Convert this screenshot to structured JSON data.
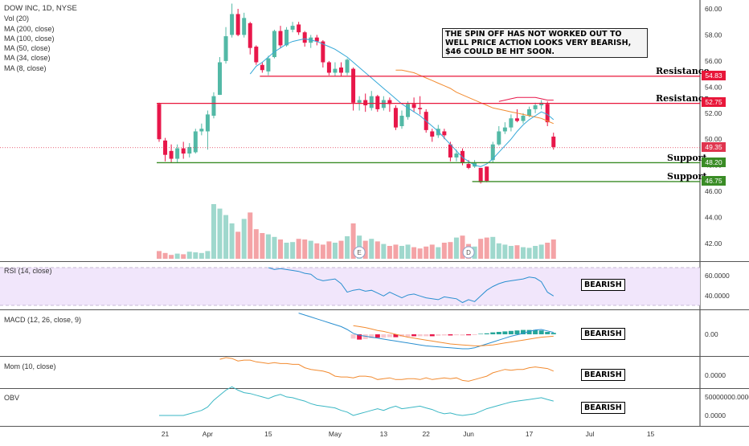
{
  "header": {
    "symbol_line": "DOW INC, 1D, NYSE",
    "indicators": [
      "Vol (20)",
      "MA (200, close)",
      "MA (100, close)",
      "MA (50, close)",
      "MA (34, close)",
      "MA (8, close)"
    ]
  },
  "note": "THE SPIN OFF HAS NOT WORKED OUT TO WELL PRICE ACTION LOOKS VERY BEARISH, $46 COULD BE HIT SOON.",
  "levels": [
    {
      "label": "Resistance",
      "price": 54.83,
      "tag": "54.83",
      "color": "#e8173a"
    },
    {
      "label": "Resistance",
      "price": 52.75,
      "tag": "52.75",
      "color": "#e8173a"
    },
    {
      "label": "Support",
      "price": 48.2,
      "tag": "48.20",
      "color": "#3a8c26"
    },
    {
      "label": "Support",
      "price": 46.75,
      "tag": "46.75",
      "color": "#3a8c26"
    }
  ],
  "last_price": {
    "price": 49.35,
    "tag": "49.35",
    "color": "#e0354f"
  },
  "panes": {
    "rsi": {
      "title": "RSI (14, close)",
      "axis": [
        "60.0000",
        "40.0000"
      ],
      "badge": "BEARISH"
    },
    "macd": {
      "title": "MACD (12, 26, close, 9)",
      "axis": [
        "0.00"
      ],
      "badge": "BEARISH"
    },
    "mom": {
      "title": "Mom (10, close)",
      "axis": [
        "0.0000"
      ],
      "badge": "BEARISH"
    },
    "obv": {
      "title": "OBV",
      "axis": [
        "50000000.0000",
        "0.0000"
      ],
      "badge": "BEARISH"
    }
  },
  "events": [
    "E",
    "D"
  ],
  "colors": {
    "up": "#53b9a6",
    "down": "#e8174a",
    "up_vol": "#9fd8cd",
    "down_vol": "#f4a3a6",
    "ma_fast": "#35a8d8",
    "ma_slow": "#f28b30",
    "ma_third": "#e8174a",
    "rsi": "#2a8fd0",
    "rsi_bg": "#f1e6fb"
  },
  "chart_data": {
    "type": "candlestick",
    "price_axis": {
      "ticks": [
        "60.00",
        "58.00",
        "56.00",
        "54.00",
        "52.00",
        "50.00",
        "48.00",
        "46.00",
        "44.00",
        "42.00"
      ],
      "range": [
        40.8,
        60.6
      ]
    },
    "x_axis": {
      "ticks": [
        "21",
        "Apr",
        "15",
        "May",
        "13",
        "22",
        "Jun",
        "17",
        "Jul",
        "15"
      ],
      "tick_dates": [
        "2019-03-21",
        "2019-04-01",
        "2019-04-15",
        "2019-05-01",
        "2019-05-13",
        "2019-05-22",
        "2019-06-03",
        "2019-06-17",
        "2019-07-01",
        "2019-07-15"
      ]
    },
    "candles": [
      {
        "date": "2019-03-20",
        "o": 52.7,
        "h": 52.8,
        "c": 50.0,
        "l": 49.8
      },
      {
        "date": "2019-03-21",
        "o": 49.9,
        "h": 50.1,
        "c": 48.8,
        "l": 48.3
      },
      {
        "date": "2019-03-22",
        "o": 49.1,
        "h": 49.6,
        "c": 48.5,
        "l": 48.2
      },
      {
        "date": "2019-03-25",
        "o": 48.5,
        "h": 49.6,
        "c": 49.3,
        "l": 48.2
      },
      {
        "date": "2019-03-26",
        "o": 49.3,
        "h": 49.8,
        "c": 48.9,
        "l": 48.5
      },
      {
        "date": "2019-03-27",
        "o": 48.9,
        "h": 49.7,
        "c": 49.4,
        "l": 48.6
      },
      {
        "date": "2019-03-28",
        "o": 49.0,
        "h": 50.8,
        "c": 50.6,
        "l": 48.9
      },
      {
        "date": "2019-03-29",
        "o": 50.6,
        "h": 51.2,
        "c": 50.8,
        "l": 50.3
      },
      {
        "date": "2019-04-01",
        "o": 50.6,
        "h": 52.2,
        "c": 51.9,
        "l": 49.2
      },
      {
        "date": "2019-04-02",
        "o": 51.8,
        "h": 53.6,
        "c": 53.3,
        "l": 51.6
      },
      {
        "date": "2019-04-03",
        "o": 53.4,
        "h": 56.3,
        "c": 55.9,
        "l": 53.4
      },
      {
        "date": "2019-04-04",
        "o": 56.0,
        "h": 58.6,
        "c": 57.9,
        "l": 55.8
      },
      {
        "date": "2019-04-05",
        "o": 58.0,
        "h": 60.4,
        "c": 59.6,
        "l": 57.8
      },
      {
        "date": "2019-04-08",
        "o": 59.6,
        "h": 60.0,
        "c": 58.0,
        "l": 57.9
      },
      {
        "date": "2019-04-09",
        "o": 58.0,
        "h": 59.7,
        "c": 59.3,
        "l": 57.8
      },
      {
        "date": "2019-04-10",
        "o": 58.9,
        "h": 59.0,
        "c": 57.0,
        "l": 56.5
      },
      {
        "date": "2019-04-11",
        "o": 57.1,
        "h": 57.2,
        "c": 55.9,
        "l": 55.7
      },
      {
        "date": "2019-04-12",
        "o": 55.7,
        "h": 55.9,
        "c": 55.3,
        "l": 55.1
      },
      {
        "date": "2019-04-15",
        "o": 55.2,
        "h": 56.4,
        "c": 56.2,
        "l": 54.9
      },
      {
        "date": "2019-04-16",
        "o": 56.3,
        "h": 58.4,
        "c": 58.3,
        "l": 56.2
      },
      {
        "date": "2019-04-17",
        "o": 58.3,
        "h": 58.7,
        "c": 57.2,
        "l": 57.0
      },
      {
        "date": "2019-04-18",
        "o": 57.2,
        "h": 58.6,
        "c": 58.4,
        "l": 57.1
      },
      {
        "date": "2019-04-22",
        "o": 58.4,
        "h": 59.0,
        "c": 58.7,
        "l": 58.2
      },
      {
        "date": "2019-04-23",
        "o": 58.8,
        "h": 59.0,
        "c": 58.2,
        "l": 58.0
      },
      {
        "date": "2019-04-24",
        "o": 58.2,
        "h": 58.3,
        "c": 57.4,
        "l": 57.1
      },
      {
        "date": "2019-04-25",
        "o": 57.4,
        "h": 58.0,
        "c": 57.8,
        "l": 57.0
      },
      {
        "date": "2019-04-26",
        "o": 57.8,
        "h": 58.0,
        "c": 57.5,
        "l": 57.2
      },
      {
        "date": "2019-04-29",
        "o": 57.5,
        "h": 57.6,
        "c": 55.9,
        "l": 55.5
      },
      {
        "date": "2019-04-30",
        "o": 55.9,
        "h": 56.0,
        "c": 55.1,
        "l": 54.9
      },
      {
        "date": "2019-05-01",
        "o": 55.1,
        "h": 55.9,
        "c": 55.4,
        "l": 54.8
      },
      {
        "date": "2019-05-02",
        "o": 55.5,
        "h": 55.9,
        "c": 55.1,
        "l": 54.8
      },
      {
        "date": "2019-05-03",
        "o": 55.1,
        "h": 56.2,
        "c": 56.1,
        "l": 54.9
      },
      {
        "date": "2019-05-06",
        "o": 55.4,
        "h": 55.5,
        "c": 52.8,
        "l": 52.2
      },
      {
        "date": "2019-05-07",
        "o": 52.8,
        "h": 53.3,
        "c": 53.0,
        "l": 52.2
      },
      {
        "date": "2019-05-08",
        "o": 53.0,
        "h": 53.5,
        "c": 52.6,
        "l": 52.1
      },
      {
        "date": "2019-05-09",
        "o": 52.4,
        "h": 53.7,
        "c": 53.3,
        "l": 52.2
      },
      {
        "date": "2019-05-10",
        "o": 53.3,
        "h": 53.4,
        "c": 52.3,
        "l": 52.1
      },
      {
        "date": "2019-05-13",
        "o": 52.4,
        "h": 53.3,
        "c": 53.0,
        "l": 52.2
      },
      {
        "date": "2019-05-14",
        "o": 53.0,
        "h": 53.2,
        "c": 52.7,
        "l": 52.1
      },
      {
        "date": "2019-05-15",
        "o": 52.4,
        "h": 52.6,
        "c": 50.9,
        "l": 50.7
      },
      {
        "date": "2019-05-16",
        "o": 51.0,
        "h": 52.2,
        "c": 51.8,
        "l": 50.8
      },
      {
        "date": "2019-05-17",
        "o": 51.7,
        "h": 52.9,
        "c": 52.7,
        "l": 51.5
      },
      {
        "date": "2019-05-20",
        "o": 52.7,
        "h": 53.2,
        "c": 52.4,
        "l": 52.1
      },
      {
        "date": "2019-05-21",
        "o": 52.4,
        "h": 53.3,
        "c": 52.3,
        "l": 51.9
      },
      {
        "date": "2019-05-22",
        "o": 52.1,
        "h": 52.3,
        "c": 50.7,
        "l": 50.5
      },
      {
        "date": "2019-05-23",
        "o": 50.6,
        "h": 50.8,
        "c": 50.2,
        "l": 49.8
      },
      {
        "date": "2019-05-24",
        "o": 50.3,
        "h": 51.1,
        "c": 50.8,
        "l": 50.1
      },
      {
        "date": "2019-05-28",
        "o": 50.6,
        "h": 50.8,
        "c": 50.3,
        "l": 50.0
      },
      {
        "date": "2019-05-29",
        "o": 49.6,
        "h": 49.8,
        "c": 48.6,
        "l": 48.3
      },
      {
        "date": "2019-05-30",
        "o": 48.6,
        "h": 49.2,
        "c": 48.9,
        "l": 48.3
      },
      {
        "date": "2019-05-31",
        "o": 49.1,
        "h": 49.3,
        "c": 48.2,
        "l": 48.0
      },
      {
        "date": "2019-06-03",
        "o": 48.1,
        "h": 48.4,
        "c": 47.8,
        "l": 47.7
      },
      {
        "date": "2019-06-04",
        "o": 47.9,
        "h": 48.4,
        "c": 48.2,
        "l": 47.8
      },
      {
        "date": "2019-06-05",
        "o": 47.8,
        "h": 47.8,
        "c": 46.7,
        "l": 46.6
      },
      {
        "date": "2019-06-06",
        "o": 47.9,
        "h": 47.9,
        "c": 46.8,
        "l": 46.7
      },
      {
        "date": "2019-06-07",
        "o": 48.4,
        "h": 49.8,
        "c": 49.6,
        "l": 48.2
      },
      {
        "date": "2019-06-10",
        "o": 49.6,
        "h": 51.0,
        "c": 50.6,
        "l": 49.5
      },
      {
        "date": "2019-06-11",
        "o": 50.6,
        "h": 51.3,
        "c": 50.9,
        "l": 50.4
      },
      {
        "date": "2019-06-12",
        "o": 50.9,
        "h": 51.9,
        "c": 51.6,
        "l": 50.6
      },
      {
        "date": "2019-06-13",
        "o": 51.6,
        "h": 52.3,
        "c": 51.4,
        "l": 51.3
      },
      {
        "date": "2019-06-14",
        "o": 51.4,
        "h": 52.0,
        "c": 51.8,
        "l": 51.2
      },
      {
        "date": "2019-06-17",
        "o": 51.8,
        "h": 52.5,
        "c": 52.3,
        "l": 51.7
      },
      {
        "date": "2019-06-18",
        "o": 52.3,
        "h": 52.8,
        "c": 52.6,
        "l": 52.0
      },
      {
        "date": "2019-06-19",
        "o": 52.6,
        "h": 53.0,
        "c": 52.8,
        "l": 52.3
      },
      {
        "date": "2019-06-20",
        "o": 52.7,
        "h": 52.9,
        "c": 51.3,
        "l": 51.0
      },
      {
        "date": "2019-06-21",
        "o": 50.2,
        "h": 50.5,
        "c": 49.4,
        "l": 49.2
      }
    ],
    "volume_relative": [
      0.12,
      0.09,
      0.06,
      0.08,
      0.07,
      0.11,
      0.1,
      0.09,
      0.12,
      0.85,
      0.78,
      0.68,
      0.55,
      0.42,
      0.62,
      0.72,
      0.46,
      0.4,
      0.38,
      0.34,
      0.3,
      0.25,
      0.26,
      0.31,
      0.3,
      0.28,
      0.24,
      0.22,
      0.27,
      0.25,
      0.28,
      0.35,
      0.55,
      0.36,
      0.28,
      0.31,
      0.27,
      0.23,
      0.2,
      0.22,
      0.2,
      0.22,
      0.18,
      0.16,
      0.19,
      0.22,
      0.18,
      0.25,
      0.26,
      0.33,
      0.36,
      0.23,
      0.19,
      0.31,
      0.33,
      0.34,
      0.24,
      0.22,
      0.2,
      0.21,
      0.18,
      0.17,
      0.2,
      0.22,
      0.25,
      0.3
    ],
    "ma_fast": [
      null,
      null,
      null,
      null,
      null,
      null,
      null,
      null,
      null,
      null,
      null,
      null,
      null,
      null,
      null,
      55.0,
      55.6,
      55.9,
      56.3,
      56.7,
      57.0,
      57.3,
      57.5,
      57.6,
      57.7,
      57.6,
      57.5,
      57.3,
      57.1,
      56.9,
      56.6,
      56.3,
      55.9,
      55.5,
      55.1,
      54.7,
      54.3,
      53.9,
      53.5,
      53.1,
      52.7,
      52.4,
      52.1,
      51.8,
      51.4,
      51.0,
      50.6,
      50.1,
      49.6,
      49.1,
      48.6,
      48.3,
      48.0,
      47.9,
      48.1,
      48.5,
      49.0,
      49.5,
      50.0,
      50.6,
      51.1,
      51.5,
      51.8,
      52.1,
      51.9,
      51.5
    ],
    "ma_slow": [
      null,
      null,
      null,
      null,
      null,
      null,
      null,
      null,
      null,
      null,
      null,
      null,
      null,
      null,
      null,
      null,
      null,
      null,
      null,
      null,
      null,
      null,
      null,
      null,
      null,
      null,
      null,
      null,
      null,
      null,
      null,
      null,
      null,
      null,
      null,
      null,
      null,
      null,
      null,
      55.3,
      55.3,
      55.2,
      55.1,
      54.9,
      54.7,
      54.5,
      54.3,
      54.1,
      53.9,
      53.6,
      53.4,
      53.2,
      53.0,
      52.8,
      52.6,
      52.4,
      52.3,
      52.2,
      52.1,
      52.0,
      51.9,
      51.8,
      51.7,
      51.6,
      51.4,
      51.2
    ],
    "ma_third": [
      null,
      null,
      null,
      null,
      null,
      null,
      null,
      null,
      null,
      null,
      null,
      null,
      null,
      null,
      null,
      null,
      null,
      null,
      null,
      null,
      null,
      null,
      null,
      null,
      null,
      null,
      null,
      null,
      null,
      null,
      null,
      null,
      null,
      null,
      null,
      null,
      null,
      null,
      null,
      null,
      null,
      null,
      null,
      null,
      null,
      null,
      null,
      null,
      null,
      null,
      null,
      null,
      null,
      null,
      null,
      null,
      52.9,
      53.0,
      53.1,
      53.2,
      53.2,
      53.2,
      53.2,
      53.1,
      53.0,
      53.0
    ],
    "rsi": [
      null,
      null,
      null,
      null,
      null,
      null,
      null,
      null,
      null,
      null,
      null,
      null,
      null,
      null,
      null,
      null,
      null,
      null,
      70,
      68,
      69,
      68,
      67,
      66,
      64,
      63,
      58,
      56,
      57,
      58,
      53,
      44,
      46,
      47,
      45,
      46,
      43,
      40,
      44,
      41,
      38,
      41,
      42,
      40,
      38,
      37,
      36,
      39,
      38,
      37,
      33,
      36,
      34,
      40,
      46,
      50,
      53,
      55,
      56,
      57,
      58,
      60,
      59,
      55,
      44,
      40
    ],
    "macd_hist": [
      null,
      null,
      null,
      null,
      null,
      null,
      null,
      null,
      null,
      null,
      null,
      null,
      null,
      null,
      null,
      null,
      null,
      null,
      null,
      null,
      null,
      null,
      null,
      null,
      null,
      null,
      null,
      null,
      null,
      null,
      null,
      null,
      -0.45,
      -0.55,
      -0.5,
      -0.4,
      -0.35,
      -0.35,
      -0.3,
      -0.3,
      -0.25,
      -0.25,
      -0.2,
      -0.2,
      -0.2,
      -0.2,
      -0.15,
      -0.12,
      -0.12,
      -0.1,
      -0.12,
      -0.1,
      -0.08,
      0.05,
      0.1,
      0.2,
      0.25,
      0.3,
      0.35,
      0.4,
      0.45,
      0.45,
      0.45,
      0.4,
      0.25,
      0.15
    ],
    "macd_line": [
      null,
      null,
      null,
      null,
      null,
      null,
      null,
      null,
      null,
      null,
      null,
      null,
      null,
      null,
      null,
      null,
      null,
      null,
      null,
      null,
      null,
      null,
      null,
      2.2,
      2.0,
      1.8,
      1.6,
      1.4,
      1.2,
      1.0,
      0.8,
      0.5,
      0.1,
      -0.1,
      -0.2,
      -0.3,
      -0.4,
      -0.5,
      -0.6,
      -0.7,
      -0.8,
      -0.9,
      -1.0,
      -1.1,
      -1.2,
      -1.25,
      -1.3,
      -1.35,
      -1.4,
      -1.45,
      -1.5,
      -1.5,
      -1.4,
      -1.2,
      -1.0,
      -0.8,
      -0.6,
      -0.4,
      -0.2,
      -0.05,
      0.1,
      0.3,
      0.45,
      0.5,
      0.35,
      0.2
    ],
    "macd_signal": [
      null,
      null,
      null,
      null,
      null,
      null,
      null,
      null,
      null,
      null,
      null,
      null,
      null,
      null,
      null,
      null,
      null,
      null,
      null,
      null,
      null,
      null,
      null,
      null,
      null,
      null,
      null,
      null,
      null,
      null,
      null,
      null,
      0.9,
      0.8,
      0.7,
      0.55,
      0.4,
      0.3,
      0.15,
      0.0,
      -0.15,
      -0.3,
      -0.4,
      -0.5,
      -0.6,
      -0.7,
      -0.8,
      -0.9,
      -1.0,
      -1.05,
      -1.1,
      -1.15,
      -1.2,
      -1.2,
      -1.15,
      -1.1,
      -1.0,
      -0.9,
      -0.8,
      -0.7,
      -0.6,
      -0.5,
      -0.4,
      -0.3,
      -0.25,
      -0.2
    ],
    "mom": [
      null,
      null,
      null,
      null,
      null,
      null,
      null,
      null,
      null,
      null,
      9,
      10,
      9.5,
      8,
      8.5,
      8.5,
      7.5,
      7,
      6.5,
      7,
      6.5,
      6.5,
      6,
      6,
      4,
      3,
      2.5,
      2,
      1,
      -1,
      -1.5,
      -1.5,
      -2,
      -1,
      -1,
      -1.5,
      -3,
      -2.5,
      -2,
      -3,
      -3,
      -2.5,
      -2.5,
      -3,
      -2,
      -3,
      -2.5,
      -2,
      -2.5,
      -2,
      -3.5,
      -4,
      -3,
      -2,
      -1,
      1,
      2,
      3,
      2.5,
      3,
      3,
      4,
      4.5,
      4,
      3.5,
      2
    ],
    "obv": [
      0,
      0,
      0,
      0,
      0,
      0.1,
      0.2,
      0.3,
      0.5,
      0.9,
      1.2,
      1.5,
      1.7,
      1.5,
      1.35,
      1.3,
      1.2,
      1.1,
      1.0,
      1.15,
      1.25,
      1.1,
      1.05,
      0.95,
      0.85,
      0.7,
      0.6,
      0.55,
      0.5,
      0.45,
      0.3,
      0.2,
      0.0,
      0.1,
      0.2,
      0.3,
      0.4,
      0.3,
      0.45,
      0.55,
      0.4,
      0.45,
      0.5,
      0.55,
      0.45,
      0.35,
      0.2,
      0.1,
      0.15,
      0.05,
      0.0,
      0.05,
      0.1,
      0.25,
      0.4,
      0.5,
      0.6,
      0.7,
      0.8,
      0.85,
      0.9,
      0.95,
      1.0,
      1.05,
      0.95,
      0.85
    ]
  }
}
